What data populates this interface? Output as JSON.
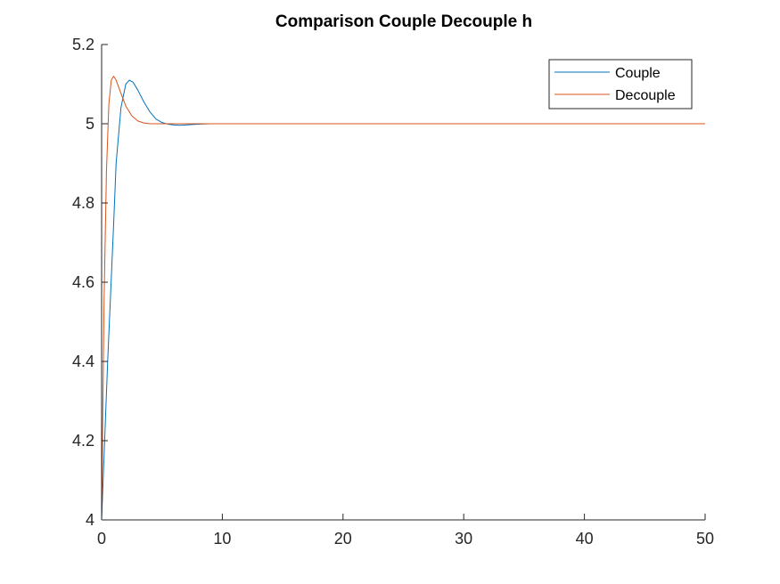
{
  "chart_data": {
    "type": "line",
    "title": "Comparison Couple Decouple h",
    "xlabel": "",
    "ylabel": "",
    "xlim": [
      0,
      50
    ],
    "ylim": [
      4,
      5.2
    ],
    "x_ticks": [
      0,
      10,
      20,
      30,
      40,
      50
    ],
    "x_tick_labels": [
      "0",
      "10",
      "20",
      "30",
      "40",
      "50"
    ],
    "y_ticks": [
      4,
      4.2,
      4.4,
      4.6,
      4.8,
      5,
      5.2
    ],
    "y_tick_labels": [
      "4",
      "4.2",
      "4.4",
      "4.6",
      "4.8",
      "5",
      "5.2"
    ],
    "grid": false,
    "legend_position": "top-right",
    "series": [
      {
        "name": "Couple",
        "color": "#0072BD",
        "x": [
          0,
          0.5,
          1,
          1.2,
          1.6,
          2,
          2.3,
          2.6,
          3,
          3.5,
          4,
          4.5,
          5,
          5.5,
          6,
          6.5,
          7,
          7.5,
          8,
          9,
          10,
          50
        ],
        "y": [
          4,
          4.4,
          4.75,
          4.9,
          5.04,
          5.1,
          5.11,
          5.105,
          5.085,
          5.055,
          5.03,
          5.012,
          5.003,
          4.999,
          4.997,
          4.996,
          4.997,
          4.998,
          4.999,
          5.0,
          5.0,
          5.0
        ]
      },
      {
        "name": "Decouple",
        "color": "#D95319",
        "x": [
          0,
          0.2,
          0.4,
          0.6,
          0.8,
          1,
          1.2,
          1.5,
          2,
          2.5,
          3,
          3.5,
          4,
          5,
          6,
          10,
          50
        ],
        "y": [
          4,
          4.55,
          4.88,
          5.05,
          5.11,
          5.12,
          5.11,
          5.085,
          5.045,
          5.02,
          5.007,
          5.002,
          5.0,
          5.0,
          5.0,
          5.0,
          5.0
        ]
      }
    ]
  }
}
